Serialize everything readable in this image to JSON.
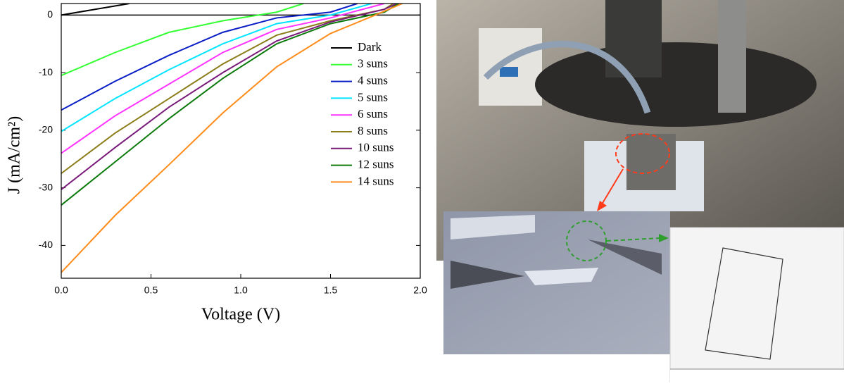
{
  "chart_data": {
    "type": "line",
    "xlabel": "Voltage (V)",
    "ylabel": "J (mA/cm²)",
    "xlim": [
      0,
      2.0
    ],
    "ylim": [
      -45.7,
      2
    ],
    "xticks": [
      {
        "value": 0,
        "label": "0.0"
      },
      {
        "value": 0.5,
        "label": "0.5"
      },
      {
        "value": 1.0,
        "label": "1.0"
      },
      {
        "value": 1.5,
        "label": "1.5"
      },
      {
        "value": 2.0,
        "label": "2.0"
      }
    ],
    "yticks": [
      0,
      -10,
      -20,
      -30,
      -40
    ],
    "legend": "upper right",
    "series": [
      {
        "name": "Dark",
        "color": "#000000",
        "x": [
          0,
          0.38
        ],
        "values": [
          0,
          2
        ]
      },
      {
        "name": "3 suns",
        "color": "#33ff33",
        "x": [
          0,
          0.3,
          0.6,
          0.9,
          1.2,
          1.35
        ],
        "values": [
          -10.5,
          -6.5,
          -3,
          -1,
          0.5,
          2
        ]
      },
      {
        "name": "4 suns",
        "color": "#0a1ec8",
        "x": [
          0,
          0.3,
          0.6,
          0.9,
          1.2,
          1.5,
          1.65
        ],
        "values": [
          -16.5,
          -11.5,
          -7,
          -3,
          -0.5,
          0.5,
          2
        ]
      },
      {
        "name": "5 suns",
        "color": "#00e5ff",
        "x": [
          0,
          0.3,
          0.6,
          0.9,
          1.2,
          1.5,
          1.73
        ],
        "values": [
          -20.2,
          -14.5,
          -9.5,
          -5,
          -1.5,
          0,
          2
        ]
      },
      {
        "name": "6 suns",
        "color": "#ff33ff",
        "x": [
          0,
          0.3,
          0.6,
          0.9,
          1.2,
          1.5,
          1.8
        ],
        "values": [
          -24,
          -17.5,
          -12,
          -6.5,
          -2.5,
          -0.5,
          2
        ]
      },
      {
        "name": "8 suns",
        "color": "#8b7d1a",
        "x": [
          0,
          0.3,
          0.6,
          0.9,
          1.2,
          1.5,
          1.8,
          1.85
        ],
        "values": [
          -27.5,
          -20.5,
          -14.5,
          -8.5,
          -3.5,
          -1,
          1,
          2
        ]
      },
      {
        "name": "10 suns",
        "color": "#7a1a7a",
        "x": [
          0,
          0.3,
          0.6,
          0.9,
          1.2,
          1.5,
          1.8,
          1.87
        ],
        "values": [
          -30.3,
          -23,
          -16,
          -10,
          -4.5,
          -1.2,
          1,
          2
        ]
      },
      {
        "name": "12 suns",
        "color": "#0a7a0a",
        "x": [
          0,
          0.3,
          0.6,
          0.9,
          1.2,
          1.5,
          1.8,
          1.88
        ],
        "values": [
          -33,
          -25.5,
          -18,
          -11,
          -5,
          -1.5,
          0.5,
          2
        ]
      },
      {
        "name": "14 suns",
        "color": "#ff8c1a",
        "x": [
          0,
          0.3,
          0.6,
          0.9,
          1.2,
          1.5,
          1.75,
          1.9
        ],
        "values": [
          -44.7,
          -34.8,
          -26,
          -17,
          -9,
          -3.2,
          0,
          2
        ]
      }
    ]
  }
}
